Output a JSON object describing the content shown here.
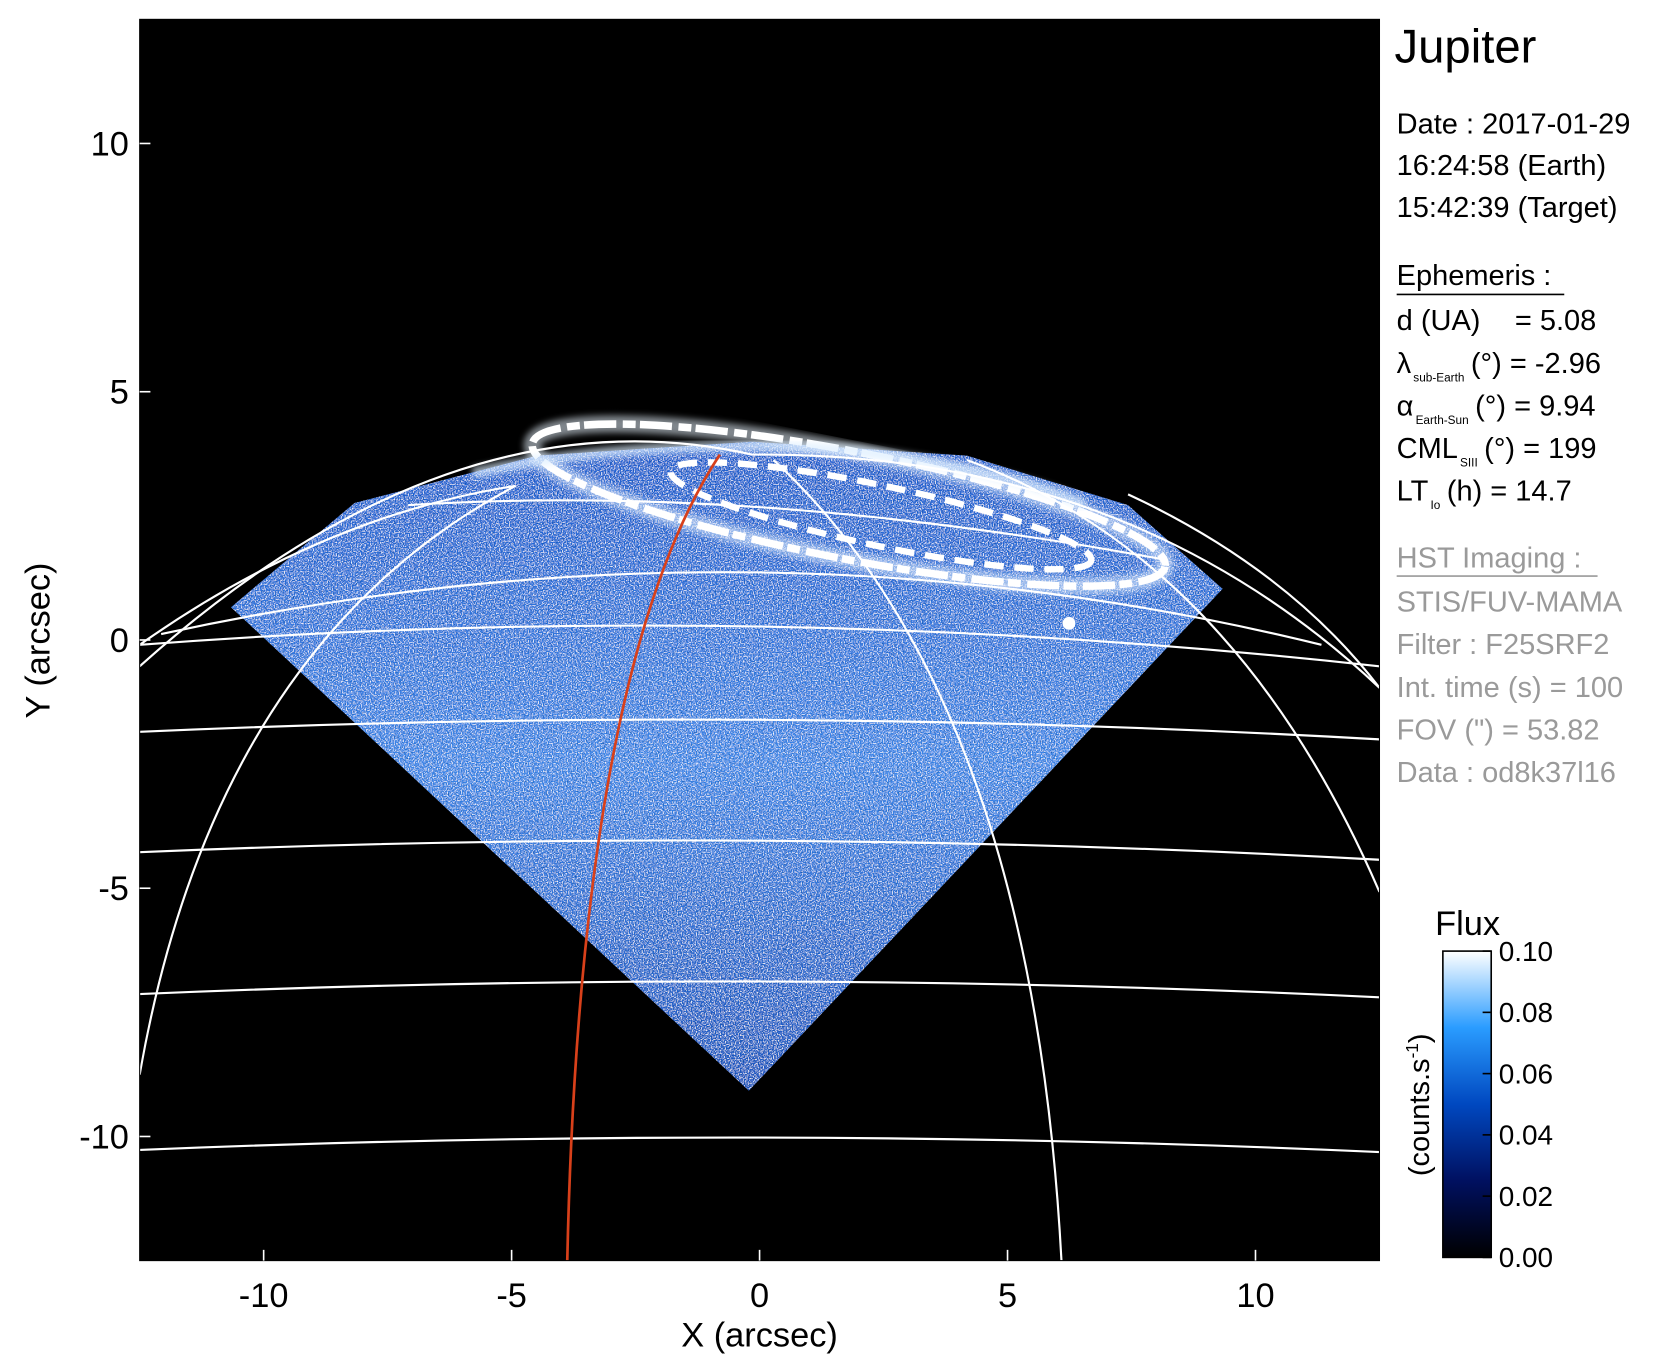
{
  "chart_data": {
    "type": "image",
    "xlabel": "X (arcsec)",
    "ylabel": "Y (arcsec)",
    "xlim": [
      -12.5,
      12.5
    ],
    "ylim": [
      -12.5,
      12.5
    ],
    "xticks": [
      -10,
      -5,
      0,
      5,
      10
    ],
    "yticks": [
      -10,
      -5,
      0,
      5,
      10
    ],
    "colorbar": {
      "title": "Flux",
      "label": "(counts.s",
      "label_superscript": "-1",
      "label_end": ")",
      "lim": [
        0,
        0.1
      ],
      "ticks": [
        {
          "value": 0,
          "label": "0.00"
        },
        0.02,
        0.04,
        0.06,
        0.08,
        {
          "value": 0.1,
          "label": "0.10"
        }
      ],
      "colors": [
        "#000000",
        "#001060",
        "#0048c0",
        "#2a9cff",
        "#ffffff"
      ]
    }
  },
  "info": {
    "title": "Jupiter",
    "date": [
      "Date : 2017-01-29",
      "16:24:58 (Earth)",
      "15:42:39 (Target)"
    ],
    "ephemeris": {
      "title": "Ephemeris :",
      "distance": {
        "label": "d (UA)",
        "value": "= 5.08"
      },
      "rows": [
        {
          "symbol": "λ",
          "sub": "sub-Earth",
          "rest": "(°) = -2.96"
        },
        {
          "symbol": "α",
          "sub": "Earth-Sun",
          "rest": "(°) = 9.94"
        },
        {
          "symbol": "CML",
          "sub": "SIII",
          "rest": "(°) = 199"
        },
        {
          "symbol": "LT",
          "sub": "Io",
          "rest": "(h) = 14.7"
        }
      ]
    },
    "imaging": {
      "title": "HST Imaging :",
      "rows": [
        "STIS/FUV-MAMA",
        "Filter : F25SRF2",
        "Int. time (s) = 100",
        "FOV (\") = 53.82",
        "Data : od8k37l16"
      ]
    }
  }
}
